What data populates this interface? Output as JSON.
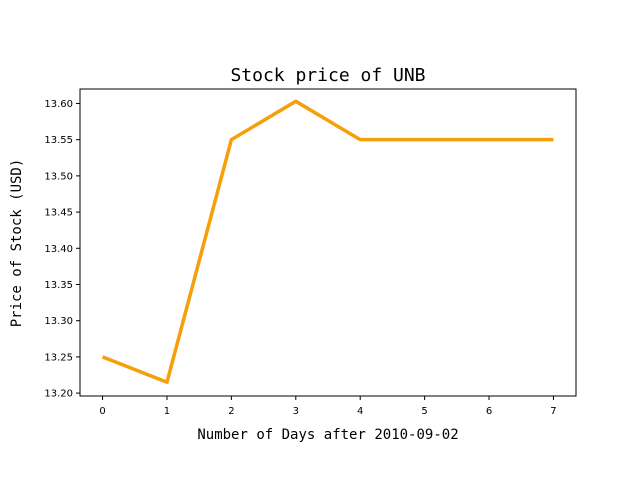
{
  "chart_data": {
    "type": "line",
    "title": "Stock price of UNB",
    "xlabel": "Number of Days after 2010-09-02",
    "ylabel": "Price of Stock (USD)",
    "x": [
      0,
      1,
      2,
      3,
      4,
      5,
      6,
      7
    ],
    "series": [
      {
        "values": [
          13.25,
          13.215,
          13.55,
          13.603,
          13.55,
          13.55,
          13.55,
          13.55
        ],
        "color": "#f5a00b"
      }
    ],
    "xlim": [
      -0.35,
      7.35
    ],
    "ylim": [
      13.196,
      13.62
    ],
    "xticks": [
      0,
      1,
      2,
      3,
      4,
      5,
      6,
      7
    ],
    "yticks": [
      13.2,
      13.25,
      13.3,
      13.35,
      13.4,
      13.45,
      13.5,
      13.55,
      13.6
    ],
    "ytick_labels": [
      "13.20",
      "13.25",
      "13.30",
      "13.35",
      "13.40",
      "13.45",
      "13.50",
      "13.55",
      "13.60"
    ],
    "grid": false,
    "legend": "none"
  }
}
